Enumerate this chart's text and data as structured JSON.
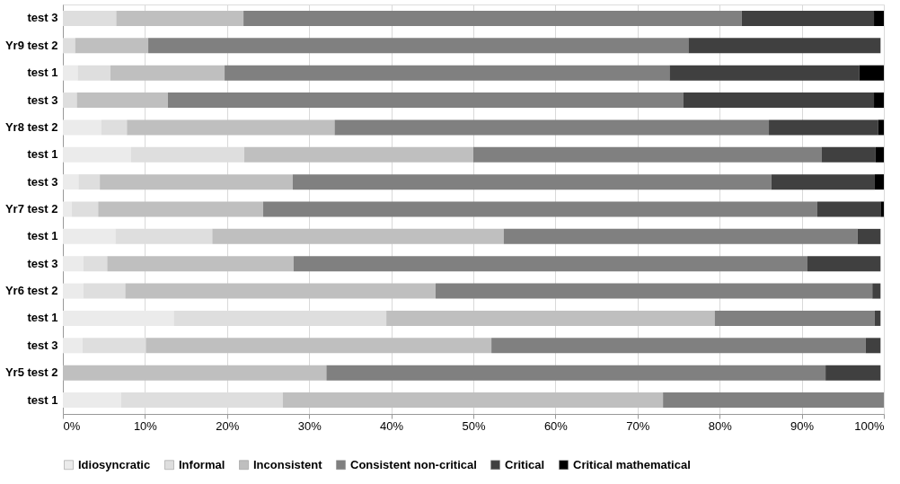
{
  "chart_data": {
    "type": "bar",
    "orientation": "horizontal",
    "stacked": true,
    "categories": [
      "test 3",
      "Yr9 test 2",
      "test 1",
      "test 3",
      "Yr8 test 2",
      "test 1",
      "test 3",
      "Yr7 test 2",
      "test 1",
      "test 3",
      "Yr6 test 2",
      "test 1",
      "test 3",
      "Yr5 test 2",
      "test 1"
    ],
    "series": [
      {
        "name": "Idiosyncratic",
        "color": "#ebebeb",
        "values": [
          0,
          0,
          1.8,
          0,
          4.7,
          8.3,
          1.9,
          1.1,
          6.4,
          2.5,
          2.5,
          13.5,
          2.4,
          0,
          7.1
        ]
      },
      {
        "name": "Informal",
        "color": "#dedede",
        "values": [
          6.5,
          1.5,
          4.0,
          1.7,
          3.1,
          13.8,
          2.6,
          3.2,
          11.8,
          2.9,
          5.1,
          25.9,
          7.7,
          0,
          19.7
        ]
      },
      {
        "name": "Inconsistent",
        "color": "#bfbfbf",
        "values": [
          15.5,
          8.9,
          13.9,
          11.1,
          25.3,
          27.9,
          23.5,
          20.1,
          35.5,
          22.7,
          37.8,
          40.0,
          42.1,
          32.1,
          46.3
        ]
      },
      {
        "name": "Consistent non-critical",
        "color": "#808080",
        "values": [
          60.7,
          65.8,
          54.2,
          62.8,
          52.9,
          42.4,
          58.3,
          67.5,
          43.1,
          62.6,
          53.2,
          19.5,
          45.6,
          60.8,
          26.9
        ]
      },
      {
        "name": "Critical",
        "color": "#404040",
        "values": [
          16.1,
          23.4,
          23.1,
          23.2,
          13.3,
          6.6,
          12.6,
          7.7,
          2.8,
          8.9,
          1.0,
          0.7,
          1.8,
          6.7,
          0
        ]
      },
      {
        "name": "Critical mathematical",
        "color": "#000000",
        "values": [
          1.2,
          0,
          3.0,
          1.2,
          0.7,
          1.0,
          1.1,
          0.4,
          0,
          0,
          0,
          0,
          0,
          0,
          0
        ]
      }
    ],
    "xlim": [
      0,
      100
    ],
    "xticks": [
      {
        "value": 0,
        "label": "0%"
      },
      {
        "value": 10,
        "label": "10%"
      },
      {
        "value": 20,
        "label": "20%"
      },
      {
        "value": 30,
        "label": "30%"
      },
      {
        "value": 40,
        "label": "40%"
      },
      {
        "value": 50,
        "label": "50%"
      },
      {
        "value": 60,
        "label": "60%"
      },
      {
        "value": 70,
        "label": "70%"
      },
      {
        "value": 80,
        "label": "80%"
      },
      {
        "value": 90,
        "label": "90%"
      },
      {
        "value": 100,
        "label": "100%"
      }
    ],
    "grid": "x",
    "legend": "bottom"
  }
}
